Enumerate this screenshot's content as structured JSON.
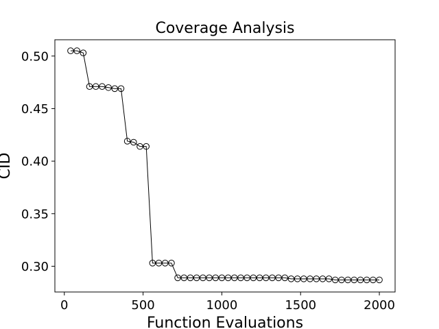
{
  "chart_data": {
    "type": "line",
    "title": "Coverage Analysis",
    "xlabel": "Function Evaluations",
    "ylabel": "CID",
    "xlim": [
      -60,
      2100
    ],
    "ylim": [
      0.2755,
      0.5155
    ],
    "xticks": [
      0,
      500,
      1000,
      1500,
      2000
    ],
    "xtick_labels": [
      "0",
      "500",
      "1000",
      "1500",
      "2000"
    ],
    "yticks": [
      0.3,
      0.35,
      0.4,
      0.45,
      0.5
    ],
    "ytick_labels": [
      "0.30",
      "0.35",
      "0.40",
      "0.45",
      "0.50"
    ],
    "grid": false,
    "marker": "open-circle",
    "series": [
      {
        "name": "CID",
        "x": [
          40,
          80,
          120,
          160,
          200,
          240,
          280,
          320,
          360,
          400,
          440,
          480,
          520,
          560,
          600,
          640,
          680,
          720,
          760,
          800,
          840,
          880,
          920,
          960,
          1000,
          1040,
          1080,
          1120,
          1160,
          1200,
          1240,
          1280,
          1320,
          1360,
          1400,
          1440,
          1480,
          1520,
          1560,
          1600,
          1640,
          1680,
          1720,
          1760,
          1800,
          1840,
          1880,
          1920,
          1960,
          2000
        ],
        "values": [
          0.505,
          0.505,
          0.503,
          0.471,
          0.471,
          0.471,
          0.47,
          0.469,
          0.469,
          0.419,
          0.418,
          0.414,
          0.414,
          0.303,
          0.303,
          0.303,
          0.303,
          0.289,
          0.289,
          0.289,
          0.289,
          0.289,
          0.289,
          0.289,
          0.289,
          0.289,
          0.289,
          0.289,
          0.289,
          0.289,
          0.289,
          0.289,
          0.289,
          0.289,
          0.289,
          0.288,
          0.288,
          0.288,
          0.288,
          0.288,
          0.288,
          0.288,
          0.287,
          0.287,
          0.287,
          0.287,
          0.287,
          0.287,
          0.287,
          0.287
        ]
      }
    ]
  }
}
